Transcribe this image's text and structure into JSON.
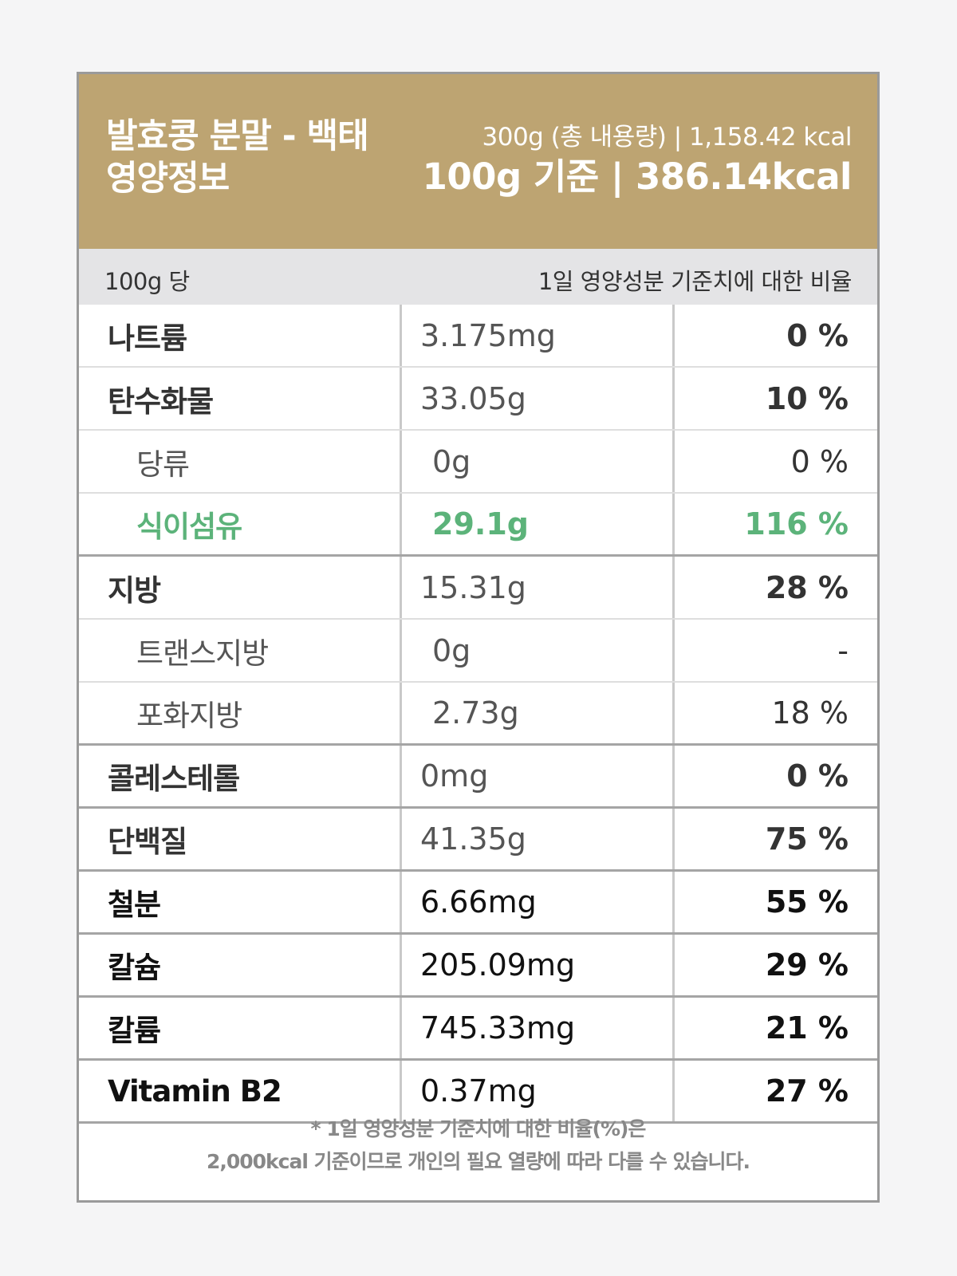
{
  "header": {
    "title_line1": "발효콩 분말 - 백태",
    "title_line2": "영양정보",
    "total": "300g (총 내용량) | 1,158.42 kcal",
    "per_basis": "100g 기준 |  386.14kcal"
  },
  "subheader": {
    "left": "100g 당",
    "right": "1일 영양성분 기준치에 대한 비율"
  },
  "rows": [
    {
      "name": "나트륨",
      "amount": "3.175mg",
      "percent": "0 %"
    },
    {
      "name": "탄수화물",
      "amount": "33.05g",
      "percent": "10 %"
    },
    {
      "name": "당류",
      "amount": "0g",
      "percent": "0 %"
    },
    {
      "name": "식이섬유",
      "amount": "29.1g",
      "percent": "116 %"
    },
    {
      "name": "지방",
      "amount": "15.31g",
      "percent": "28 %"
    },
    {
      "name": "트랜스지방",
      "amount": "0g",
      "percent": "-"
    },
    {
      "name": "포화지방",
      "amount": "2.73g",
      "percent": "18 %"
    },
    {
      "name": "콜레스테롤",
      "amount": "0mg",
      "percent": "0 %"
    },
    {
      "name": "단백질",
      "amount": "41.35g",
      "percent": "75 %"
    },
    {
      "name": "철분",
      "amount": "6.66mg",
      "percent": "55 %"
    },
    {
      "name": "칼슘",
      "amount": "205.09mg",
      "percent": "29 %"
    },
    {
      "name": "칼륨",
      "amount": "745.33mg",
      "percent": "21 %"
    },
    {
      "name": "Vitamin B2",
      "amount": "0.37mg",
      "percent": "27 %"
    }
  ],
  "footnote": {
    "line1": "* 1일 영양성분 기준치에 대한 비율(%)은",
    "line2": "2,000kcal 기준이므로 개인의 필요 열량에 따라 다를 수 있습니다."
  },
  "colors": {
    "header_bg": "#bda472",
    "highlight_green": "#5cb37a",
    "subheader_bg": "#e4e4e6"
  }
}
